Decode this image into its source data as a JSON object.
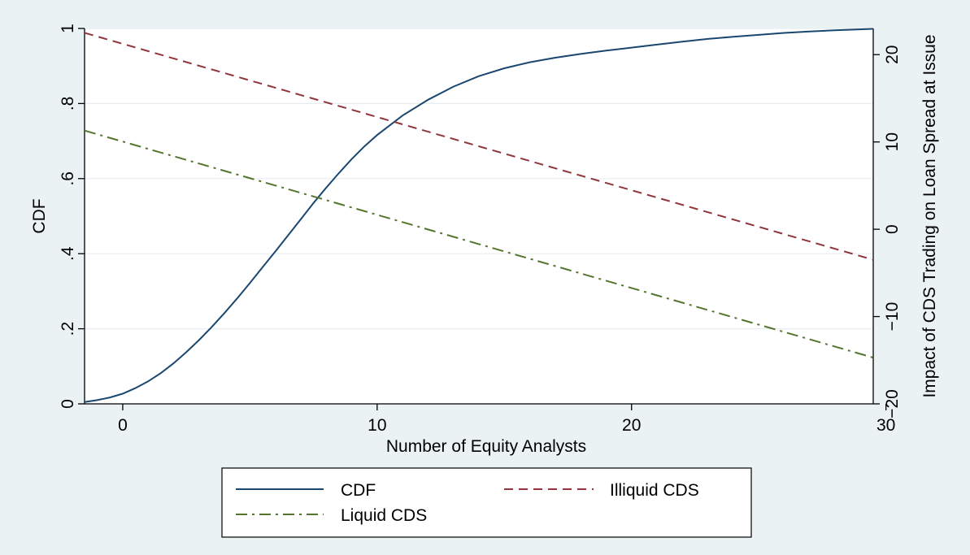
{
  "chart_data": {
    "type": "line",
    "title": "",
    "xlabel": "Number of Equity Analysts",
    "ylabel": "CDF",
    "y2label": "Impact of CDS Trading on Loan Spread at Issue",
    "xlim": [
      -1.5,
      29.5
    ],
    "ylim": [
      0,
      1
    ],
    "y2lim": [
      -20,
      23
    ],
    "x_ticks": [
      0,
      10,
      20,
      30
    ],
    "x_tick_labels": [
      "0",
      "10",
      "20",
      "30"
    ],
    "y_ticks": [
      0,
      0.2,
      0.4,
      0.6,
      0.8,
      1
    ],
    "y_tick_labels": [
      "0",
      ".2",
      ".4",
      ".6",
      ".8",
      "1"
    ],
    "y2_ticks": [
      -20,
      -10,
      0,
      10,
      20
    ],
    "y2_tick_labels": [
      "−20",
      "−10",
      "0",
      "10",
      "20"
    ],
    "grid": true,
    "legend_position": "bottom",
    "series": [
      {
        "name": "CDF",
        "axis": "left",
        "color": "#1a476f",
        "style": "solid",
        "x": [
          -1.5,
          -1,
          -0.5,
          0,
          0.5,
          1,
          1.5,
          2,
          2.5,
          3,
          3.5,
          4,
          4.5,
          5,
          5.5,
          6,
          6.5,
          7,
          7.5,
          8,
          8.5,
          9,
          9.5,
          10,
          11,
          12,
          13,
          14,
          15,
          16,
          17,
          18,
          19,
          20,
          21,
          22,
          23,
          24,
          25,
          26,
          27,
          28,
          29.5
        ],
        "y": [
          0.005,
          0.01,
          0.017,
          0.027,
          0.042,
          0.06,
          0.082,
          0.108,
          0.138,
          0.17,
          0.205,
          0.242,
          0.281,
          0.322,
          0.364,
          0.406,
          0.449,
          0.492,
          0.535,
          0.576,
          0.615,
          0.652,
          0.686,
          0.716,
          0.768,
          0.81,
          0.845,
          0.873,
          0.894,
          0.91,
          0.922,
          0.932,
          0.941,
          0.949,
          0.957,
          0.965,
          0.972,
          0.978,
          0.983,
          0.988,
          0.992,
          0.995,
          0.999
        ]
      },
      {
        "name": "Illiquid CDS",
        "axis": "right",
        "color": "#90353b",
        "style": "dashed",
        "x": [
          -1.5,
          29.5
        ],
        "y": [
          22.5,
          -3.5
        ]
      },
      {
        "name": "Liquid CDS",
        "axis": "right",
        "color": "#55752f",
        "style": "dashdot",
        "x": [
          -1.5,
          29.5
        ],
        "y": [
          11.3,
          -14.7
        ]
      }
    ]
  }
}
